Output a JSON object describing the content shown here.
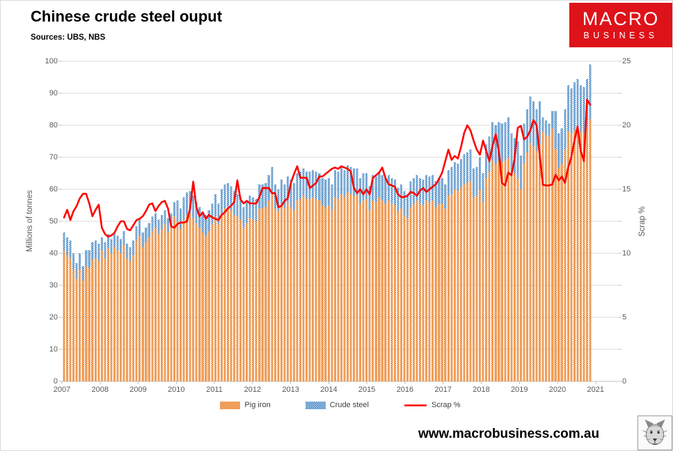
{
  "header": {
    "title": "Chinese crude steel ouput",
    "sources": "Sources: UBS, NBS"
  },
  "logo": {
    "line1": "MACRO",
    "line2": "BUSINESS",
    "bg_color": "#DE1219",
    "text_color": "#ffffff"
  },
  "footer": {
    "url": "www.macrobusiness.com.au",
    "wolf_icon": "wolf-sketch-drawing"
  },
  "chart_data": {
    "type": "bar+line combo (monthly, stacked-look bars with line on secondary axis)",
    "x_start": "2007-01",
    "x_interval": "monthly",
    "n_months": 168,
    "x_tick_labels": [
      "2007",
      "2008",
      "2009",
      "2010",
      "2011",
      "2012",
      "2013",
      "2014",
      "2015",
      "2016",
      "2017",
      "2018",
      "2019",
      "2020",
      "2021"
    ],
    "left_axis": {
      "title": "Millions of tonnes",
      "min": 0,
      "max": 100,
      "step": 10,
      "tick_labels": [
        "0",
        "10",
        "20",
        "30",
        "40",
        "50",
        "60",
        "70",
        "80",
        "90",
        "100"
      ]
    },
    "right_axis": {
      "title": "Scrap %",
      "min": 0,
      "max": 25,
      "step": 5,
      "tick_labels": [
        "0",
        "5",
        "10",
        "15",
        "20",
        "25"
      ]
    },
    "grid": "horizontal only, light gray",
    "legend_position": "bottom",
    "series": [
      {
        "name": "Pig iron",
        "type": "bar",
        "axis": "left",
        "color": "#ED7D31",
        "pattern_bg": "#F7BE8D",
        "pattern_dot": "#E26B0A",
        "values": [
          41.0,
          39.5,
          38.5,
          35.0,
          32.0,
          35.0,
          31.5,
          36.0,
          35.5,
          38.0,
          38.5,
          37.5,
          41.0,
          38.5,
          41.5,
          40.0,
          42.0,
          41.0,
          40.0,
          42.5,
          38.5,
          37.5,
          39.5,
          44.0,
          45.5,
          42.0,
          43.5,
          45.0,
          47.0,
          48.0,
          46.0,
          47.5,
          49.0,
          46.5,
          48.0,
          51.5,
          50.0,
          47.5,
          50.5,
          52.0,
          52.5,
          51.0,
          49.5,
          48.0,
          46.5,
          45.5,
          47.0,
          49.0,
          51.5,
          49.0,
          52.5,
          54.0,
          54.5,
          53.5,
          52.0,
          51.5,
          50.5,
          48.0,
          49.5,
          51.0,
          50.5,
          50.0,
          54.0,
          54.0,
          54.5,
          56.5,
          58.5,
          54.0,
          53.0,
          55.5,
          54.0,
          56.0,
          54.5,
          53.5,
          56.5,
          57.0,
          58.0,
          57.0,
          57.0,
          57.5,
          57.0,
          56.5,
          55.0,
          54.5,
          55.0,
          53.5,
          57.5,
          57.0,
          58.5,
          57.5,
          59.0,
          58.5,
          58.0,
          58.0,
          55.5,
          56.5,
          57.0,
          53.5,
          56.5,
          56.0,
          57.5,
          56.5,
          55.5,
          56.5,
          55.5,
          55.0,
          53.0,
          54.0,
          52.0,
          51.0,
          54.5,
          55.5,
          56.5,
          55.5,
          55.0,
          56.5,
          56.0,
          56.5,
          54.5,
          55.5,
          55.5,
          54.0,
          58.0,
          58.5,
          60.0,
          59.5,
          60.5,
          61.5,
          62.0,
          62.5,
          57.5,
          58.0,
          60.0,
          56.0,
          63.5,
          65.5,
          69.0,
          68.0,
          69.0,
          68.5,
          69.0,
          70.0,
          66.0,
          65.0,
          63.5,
          60.0,
          68.0,
          71.5,
          74.5,
          73.5,
          72.0,
          74.0,
          78.0,
          77.0,
          76.5,
          79.0,
          72.5,
          66.5,
          68.0,
          72.5,
          78.0,
          77.5,
          78.5,
          79.0,
          78.0,
          77.5,
          79.5,
          82.0
        ]
      },
      {
        "name": "Crude steel",
        "type": "bar",
        "axis": "left",
        "color": "#5B9BD5",
        "pattern_bg": "#ABCBE9",
        "pattern_dot": "#2E74B5",
        "note": "total bar height; blue segment drawn from pig-iron top to this value",
        "values": [
          46.5,
          45.0,
          44.0,
          40.0,
          37.0,
          40.0,
          36.0,
          41.0,
          41.0,
          43.5,
          44.0,
          43.0,
          45.0,
          43.5,
          46.0,
          44.5,
          46.5,
          45.5,
          44.5,
          47.0,
          43.0,
          42.0,
          44.0,
          48.5,
          50.5,
          46.5,
          48.0,
          49.5,
          51.5,
          52.5,
          50.5,
          52.0,
          53.5,
          51.0,
          52.5,
          56.0,
          56.5,
          54.0,
          57.5,
          59.0,
          59.5,
          58.0,
          56.0,
          54.5,
          53.0,
          52.0,
          53.5,
          55.5,
          58.5,
          55.5,
          60.0,
          61.5,
          62.0,
          61.0,
          59.5,
          58.5,
          57.5,
          54.5,
          56.0,
          58.0,
          57.5,
          57.0,
          61.5,
          61.5,
          62.0,
          64.5,
          67.0,
          61.5,
          60.0,
          63.0,
          61.5,
          64.0,
          63.0,
          62.0,
          65.0,
          65.5,
          66.5,
          65.5,
          65.5,
          66.0,
          65.5,
          65.0,
          63.5,
          63.0,
          63.5,
          61.5,
          66.0,
          65.5,
          67.0,
          66.0,
          67.5,
          67.0,
          66.5,
          66.5,
          63.5,
          65.0,
          65.0,
          61.0,
          64.5,
          64.0,
          65.5,
          64.5,
          63.5,
          64.5,
          63.5,
          63.0,
          60.5,
          61.5,
          59.5,
          58.5,
          62.5,
          63.5,
          64.5,
          63.5,
          63.0,
          64.5,
          64.0,
          64.5,
          62.5,
          63.5,
          63.5,
          61.5,
          66.0,
          67.0,
          68.5,
          68.0,
          69.5,
          71.0,
          71.5,
          72.5,
          66.5,
          67.0,
          70.0,
          65.0,
          74.0,
          76.5,
          81.0,
          80.0,
          81.0,
          80.5,
          81.0,
          82.5,
          77.5,
          76.0,
          75.0,
          70.5,
          80.5,
          85.0,
          89.0,
          87.5,
          85.0,
          87.5,
          82.5,
          81.5,
          80.5,
          84.5,
          84.5,
          77.5,
          79.0,
          85.0,
          92.5,
          91.5,
          93.5,
          94.5,
          92.5,
          92.0,
          94.5,
          99.0
        ]
      },
      {
        "name": "Scrap %",
        "type": "line",
        "axis": "right",
        "color": "#FF0000",
        "values": [
          12.8,
          13.4,
          12.6,
          13.3,
          13.7,
          14.3,
          14.65,
          14.65,
          13.9,
          12.9,
          13.4,
          13.8,
          12.0,
          11.5,
          11.3,
          11.4,
          11.6,
          12.1,
          12.5,
          12.5,
          11.9,
          11.8,
          12.2,
          12.6,
          12.7,
          12.9,
          13.3,
          13.8,
          13.9,
          13.3,
          13.7,
          14.0,
          14.1,
          13.5,
          12.1,
          12.0,
          12.3,
          12.4,
          12.4,
          12.5,
          13.5,
          15.6,
          13.6,
          12.9,
          13.2,
          12.7,
          13.0,
          12.8,
          12.7,
          12.6,
          13.0,
          13.2,
          13.5,
          13.7,
          14.0,
          15.7,
          14.2,
          13.9,
          14.1,
          13.9,
          13.9,
          13.9,
          14.4,
          15.1,
          15.1,
          15.1,
          14.7,
          14.7,
          13.6,
          13.7,
          14.1,
          14.3,
          15.5,
          16.2,
          16.8,
          15.9,
          15.9,
          15.9,
          15.1,
          15.3,
          15.5,
          16.0,
          16.0,
          16.2,
          16.4,
          16.6,
          16.7,
          16.6,
          16.8,
          16.7,
          16.6,
          16.4,
          15.1,
          14.7,
          15.0,
          14.6,
          15.0,
          14.6,
          15.9,
          16.1,
          16.3,
          16.7,
          15.9,
          15.4,
          15.3,
          15.2,
          14.6,
          14.4,
          14.4,
          14.5,
          14.8,
          14.7,
          14.5,
          14.9,
          15.1,
          14.8,
          15.0,
          15.2,
          15.4,
          15.8,
          16.3,
          17.2,
          18.1,
          17.3,
          17.6,
          17.4,
          18.3,
          19.4,
          20.0,
          19.6,
          18.8,
          18.1,
          17.7,
          18.8,
          18.0,
          17.2,
          18.4,
          19.3,
          18.0,
          15.5,
          15.3,
          16.3,
          16.1,
          17.4,
          19.8,
          19.95,
          18.9,
          19.1,
          19.6,
          20.4,
          20.0,
          17.6,
          15.35,
          15.3,
          15.3,
          15.4,
          16.15,
          15.7,
          16.0,
          15.5,
          16.7,
          17.5,
          18.8,
          19.9,
          18.0,
          17.2,
          22.0,
          21.6
        ]
      }
    ]
  }
}
